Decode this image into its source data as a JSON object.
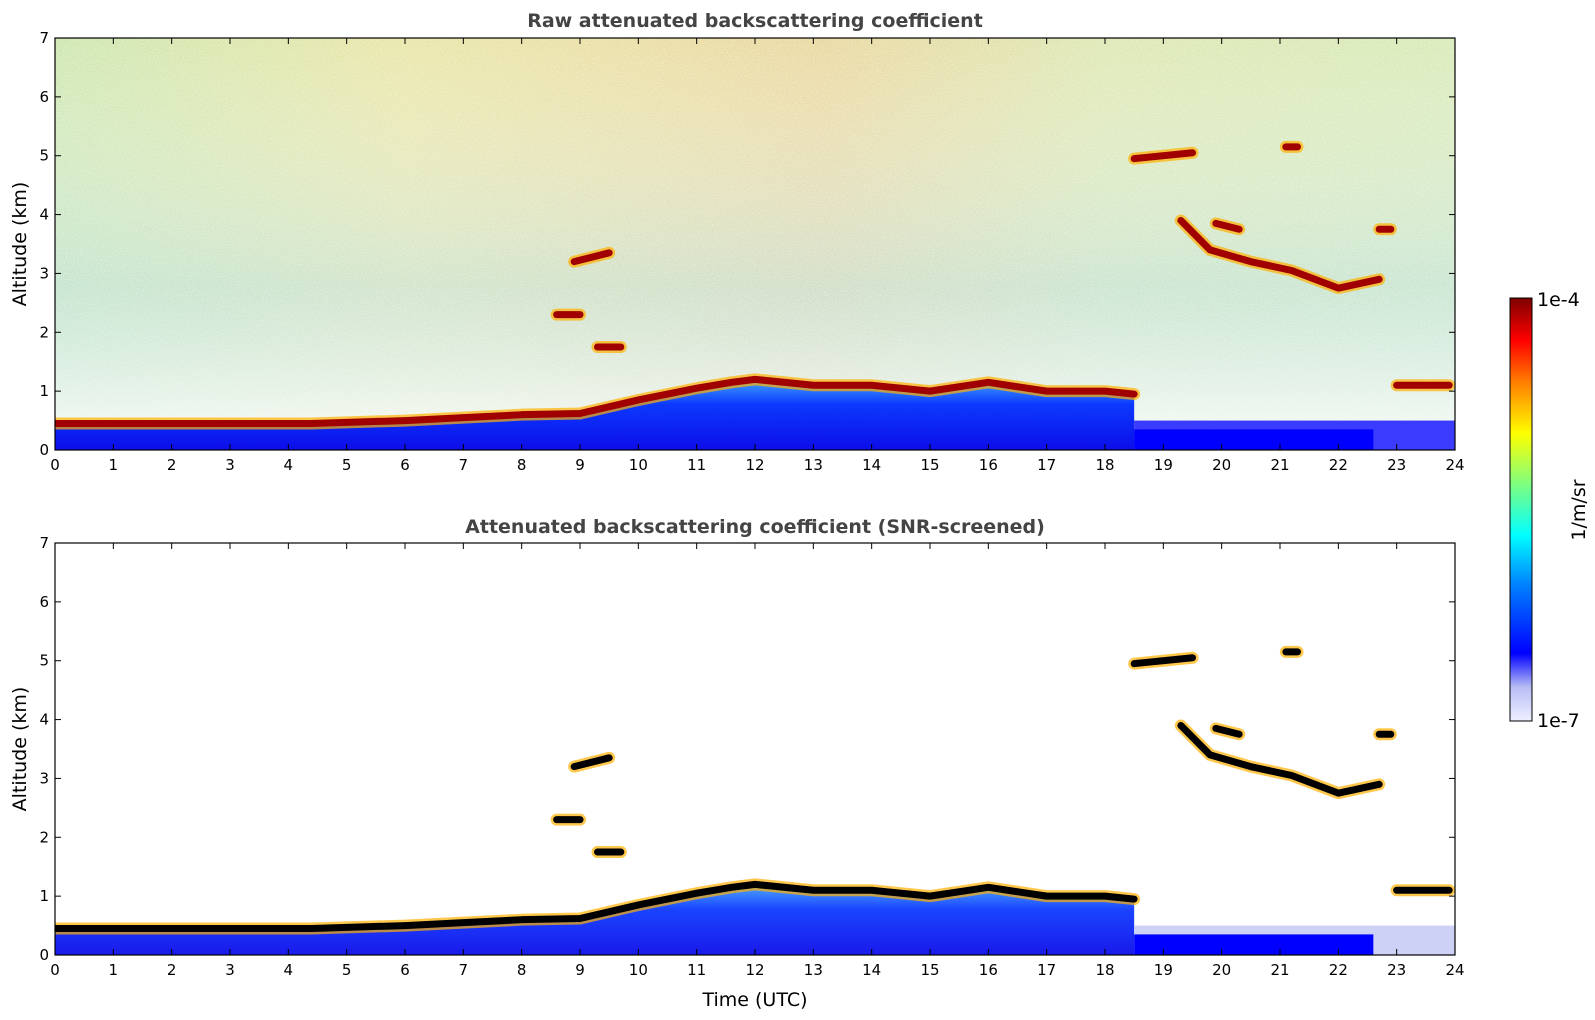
{
  "colors": {
    "jet_stops": [
      "#00007f",
      "#0000ff",
      "#007fff",
      "#00ffff",
      "#7fff7f",
      "#ffff00",
      "#ff7f00",
      "#ff0000",
      "#7f0000"
    ],
    "low": "#e8e8f8",
    "cloud_core": "#000000",
    "axis": "#000000",
    "title": "#444444"
  },
  "colorbar": {
    "max_label": "1e-4",
    "min_label": "1e-7",
    "unit_label": "1/m/sr",
    "scale": "log"
  },
  "chart_data": [
    {
      "type": "heatmap",
      "title": "Raw attenuated backscattering coefficient",
      "xlabel": "",
      "ylabel": "Altitude (km)",
      "xlim": [
        0,
        24
      ],
      "ylim": [
        0,
        7
      ],
      "xticks": [
        "0",
        "1",
        "2",
        "3",
        "4",
        "5",
        "6",
        "7",
        "8",
        "9",
        "10",
        "11",
        "12",
        "13",
        "14",
        "15",
        "16",
        "17",
        "18",
        "19",
        "20",
        "21",
        "22",
        "23",
        "24"
      ],
      "yticks": [
        "0",
        "1",
        "2",
        "3",
        "4",
        "5",
        "6",
        "7"
      ],
      "noise_background": true,
      "layers": [
        {
          "name": "boundary-layer-top",
          "segments": [
            [
              0,
              0.45
            ],
            [
              4.4,
              0.45
            ],
            [
              6,
              0.5
            ],
            [
              7,
              0.55
            ],
            [
              8,
              0.6
            ],
            [
              9,
              0.62
            ],
            [
              10,
              0.85
            ],
            [
              11,
              1.05
            ],
            [
              11.6,
              1.15
            ],
            [
              12,
              1.2
            ],
            [
              13,
              1.1
            ],
            [
              14,
              1.1
            ],
            [
              15,
              1.0
            ],
            [
              16,
              1.15
            ],
            [
              17,
              1.0
            ],
            [
              18,
              1.0
            ],
            [
              18.5,
              0.95
            ]
          ]
        },
        {
          "name": "elevated-layer-0845",
          "segments": [
            [
              8.6,
              2.3
            ],
            [
              9.0,
              2.3
            ]
          ]
        },
        {
          "name": "elevated-layer-0900",
          "segments": [
            [
              8.9,
              3.2
            ],
            [
              9.5,
              3.35
            ]
          ]
        },
        {
          "name": "elevated-layer-0930",
          "segments": [
            [
              9.3,
              1.75
            ],
            [
              9.7,
              1.75
            ]
          ]
        },
        {
          "name": "cirrus-19",
          "segments": [
            [
              18.5,
              4.95
            ],
            [
              19.5,
              5.05
            ]
          ]
        },
        {
          "name": "cirrus-21",
          "segments": [
            [
              21.1,
              5.15
            ],
            [
              21.3,
              5.15
            ]
          ]
        },
        {
          "name": "slanted-layer",
          "segments": [
            [
              19.3,
              3.9
            ],
            [
              19.8,
              3.4
            ],
            [
              20.5,
              3.2
            ],
            [
              21.2,
              3.05
            ],
            [
              22,
              2.75
            ],
            [
              22.7,
              2.9
            ]
          ]
        },
        {
          "name": "layer-20-39",
          "segments": [
            [
              19.9,
              3.85
            ],
            [
              20.3,
              3.75
            ]
          ]
        },
        {
          "name": "layer-23-37",
          "segments": [
            [
              22.7,
              3.75
            ],
            [
              22.9,
              3.75
            ]
          ]
        },
        {
          "name": "layer-23-11",
          "segments": [
            [
              23.0,
              1.1
            ],
            [
              23.9,
              1.1
            ]
          ]
        }
      ]
    },
    {
      "type": "heatmap",
      "title": "Attenuated backscattering coefficient (SNR-screened)",
      "xlabel": "Time (UTC)",
      "ylabel": "Altitude (km)",
      "xlim": [
        0,
        24
      ],
      "ylim": [
        0,
        7
      ],
      "xticks": [
        "0",
        "1",
        "2",
        "3",
        "4",
        "5",
        "6",
        "7",
        "8",
        "9",
        "10",
        "11",
        "12",
        "13",
        "14",
        "15",
        "16",
        "17",
        "18",
        "19",
        "20",
        "21",
        "22",
        "23",
        "24"
      ],
      "yticks": [
        "0",
        "1",
        "2",
        "3",
        "4",
        "5",
        "6",
        "7"
      ],
      "noise_background": false
    }
  ]
}
